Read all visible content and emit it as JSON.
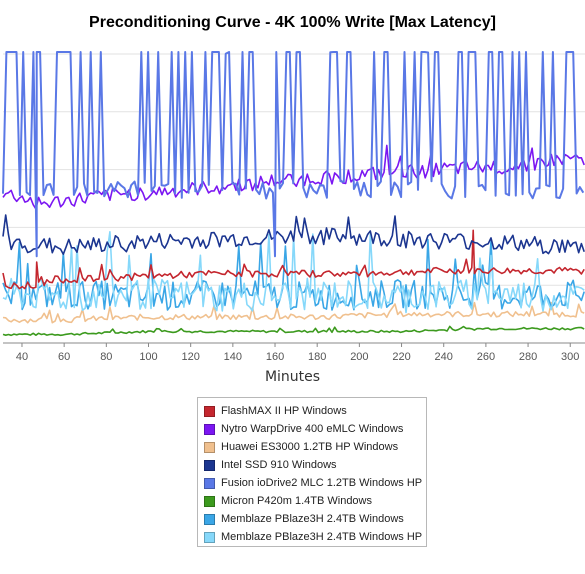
{
  "chart_data": {
    "type": "line",
    "title": "Preconditioning Curve - 4K 100% Write [Max Latency]",
    "xlabel": "Minutes",
    "ylabel": "",
    "xlim": [
      31,
      307
    ],
    "ylim": [
      0,
      100
    ],
    "x_ticks": [
      40,
      60,
      80,
      100,
      120,
      140,
      160,
      180,
      200,
      220,
      240,
      260,
      280,
      300
    ],
    "grid": true,
    "legend_position": "bottom-center",
    "series": [
      {
        "name": "FlashMAX II HP Windows",
        "color": "#c4262e",
        "baseline": 24,
        "noise": 1.2,
        "x": [
          33,
          48,
          54,
          68,
          95,
          130,
          160,
          200,
          240,
          255,
          290,
          306
        ],
        "y": [
          20,
          20,
          22,
          22,
          23,
          24,
          24,
          24,
          25,
          25,
          25,
          25
        ]
      },
      {
        "name": "Nytro WarpDrive 400 eMLC Windows",
        "color": "#7b16f2",
        "baseline": 50,
        "noise": 2.5,
        "x": [
          31,
          50,
          80,
          120,
          160,
          200,
          240,
          270,
          290,
          306
        ],
        "y": [
          52,
          48,
          51,
          53,
          56,
          58,
          60,
          61,
          63,
          64
        ]
      },
      {
        "name": "Huawei ES3000 1.2TB HP Windows",
        "color": "#f0c08e",
        "baseline": 8,
        "noise": 1.0,
        "x": [
          31,
          60,
          100,
          140,
          180,
          220,
          260,
          306
        ],
        "y": [
          8,
          8,
          9,
          9,
          9,
          10,
          10,
          10
        ]
      },
      {
        "name": "Intel SSD 910 Windows",
        "color": "#1b3590",
        "baseline": 35,
        "noise": 3.0,
        "x": [
          31,
          60,
          100,
          140,
          180,
          220,
          260,
          306
        ],
        "y": [
          35,
          33,
          35,
          36,
          37,
          36,
          35,
          33
        ]
      },
      {
        "name": "Fusion ioDrive2 MLC 1.2TB Windows HP",
        "color": "#5a78e6",
        "baseline": 100,
        "noise": 0,
        "x": [
          31,
          60,
          100,
          140,
          180,
          220,
          260,
          306
        ],
        "y": [
          100,
          100,
          100,
          100,
          100,
          100,
          100,
          100
        ]
      },
      {
        "name": "Micron P420m 1.4TB Windows",
        "color": "#3c9a1e",
        "baseline": 4,
        "noise": 0.4,
        "x": [
          31,
          60,
          100,
          140,
          180,
          220,
          260,
          306
        ],
        "y": [
          3,
          3,
          4,
          4,
          4,
          4,
          5,
          5
        ]
      },
      {
        "name": "Memblaze PBlaze3H 2.4TB Windows",
        "color": "#3aa6e6",
        "baseline": 16,
        "noise": 5.0,
        "x": [
          31,
          60,
          100,
          140,
          180,
          220,
          260,
          306
        ],
        "y": [
          16,
          17,
          16,
          17,
          16,
          17,
          16,
          17
        ]
      },
      {
        "name": "Memblaze PBlaze3H 2.4TB Windows HP",
        "color": "#86d8fa",
        "baseline": 17,
        "noise": 5.5,
        "x": [
          31,
          60,
          100,
          140,
          180,
          220,
          260,
          306
        ],
        "y": [
          17,
          16,
          17,
          16,
          17,
          16,
          17,
          16
        ]
      }
    ]
  }
}
